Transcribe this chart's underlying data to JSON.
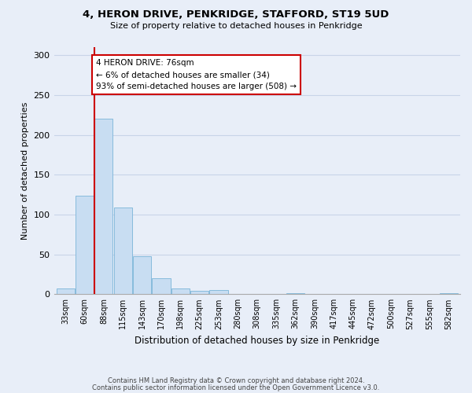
{
  "title_line1": "4, HERON DRIVE, PENKRIDGE, STAFFORD, ST19 5UD",
  "title_line2": "Size of property relative to detached houses in Penkridge",
  "xlabel": "Distribution of detached houses by size in Penkridge",
  "ylabel": "Number of detached properties",
  "footnote_line1": "Contains HM Land Registry data © Crown copyright and database right 2024.",
  "footnote_line2": "Contains public sector information licensed under the Open Government Licence v3.0.",
  "bar_labels": [
    "33sqm",
    "60sqm",
    "88sqm",
    "115sqm",
    "143sqm",
    "170sqm",
    "198sqm",
    "225sqm",
    "253sqm",
    "280sqm",
    "308sqm",
    "335sqm",
    "362sqm",
    "390sqm",
    "417sqm",
    "445sqm",
    "472sqm",
    "500sqm",
    "527sqm",
    "555sqm",
    "582sqm"
  ],
  "bar_values": [
    7,
    124,
    220,
    109,
    48,
    20,
    7,
    4,
    5,
    0,
    0,
    0,
    1,
    0,
    0,
    0,
    0,
    0,
    0,
    0,
    1
  ],
  "bar_color": "#c8ddf2",
  "bar_edge_color": "#7ab4d8",
  "grid_color": "#c8d4e8",
  "background_color": "#e8eef8",
  "vline_x_index": 1.5,
  "vline_color": "#cc0000",
  "annotation_text": "4 HERON DRIVE: 76sqm\n← 6% of detached houses are smaller (34)\n93% of semi-detached houses are larger (508) →",
  "annotation_box_color": "#ffffff",
  "annotation_box_edge": "#cc0000",
  "ylim": [
    0,
    310
  ],
  "yticks": [
    0,
    50,
    100,
    150,
    200,
    250,
    300
  ]
}
